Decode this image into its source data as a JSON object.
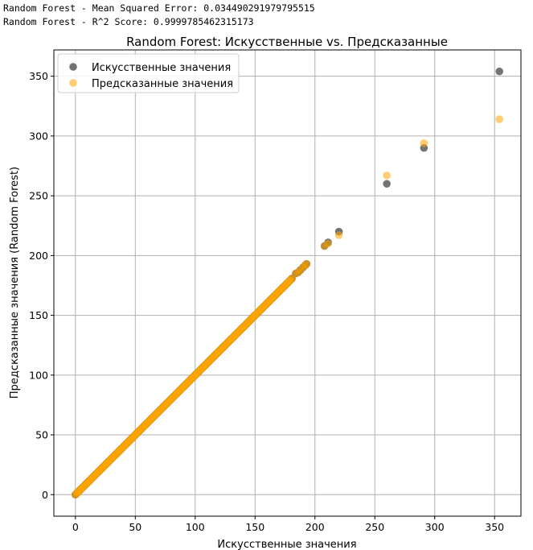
{
  "console": {
    "mse_line": "Random Forest - Mean Squared Error: 0.034490291979795515",
    "r2_line": "Random Forest - R^2 Score: 0.9999785462315173"
  },
  "chart_data": {
    "type": "scatter",
    "title": "Random Forest: Искусственные vs. Предсказанные",
    "xlabel": "Искусственные значения",
    "ylabel": "Предсказанные значения (Random Forest)",
    "xlim": [
      -18,
      372
    ],
    "ylim": [
      -18,
      372
    ],
    "xticks": [
      0,
      50,
      100,
      150,
      200,
      250,
      300,
      350
    ],
    "yticks": [
      0,
      50,
      100,
      150,
      200,
      250,
      300,
      350
    ],
    "grid": true,
    "legend_position": "top-left",
    "series": [
      {
        "name": "Искусственные значения",
        "color": "#444444",
        "alpha": 0.75,
        "dense_range": [
          0,
          181
        ],
        "points": [
          [
            184,
            185
          ],
          [
            186,
            186
          ],
          [
            188,
            188
          ],
          [
            190,
            190
          ],
          [
            192,
            192
          ],
          [
            193,
            193
          ],
          [
            208,
            208
          ],
          [
            211,
            211
          ],
          [
            220,
            220
          ],
          [
            260,
            260
          ],
          [
            291,
            290
          ],
          [
            354,
            354
          ]
        ]
      },
      {
        "name": "Предсказанные значения",
        "color": "#FFA500",
        "alpha": 0.55,
        "dense_range": [
          0,
          181
        ],
        "points": [
          [
            184,
            185
          ],
          [
            186,
            186
          ],
          [
            188,
            188
          ],
          [
            190,
            190
          ],
          [
            192,
            192
          ],
          [
            193,
            193
          ],
          [
            208,
            208
          ],
          [
            211,
            210
          ],
          [
            220,
            217
          ],
          [
            260,
            267
          ],
          [
            291,
            294
          ],
          [
            354,
            314
          ]
        ]
      }
    ]
  }
}
